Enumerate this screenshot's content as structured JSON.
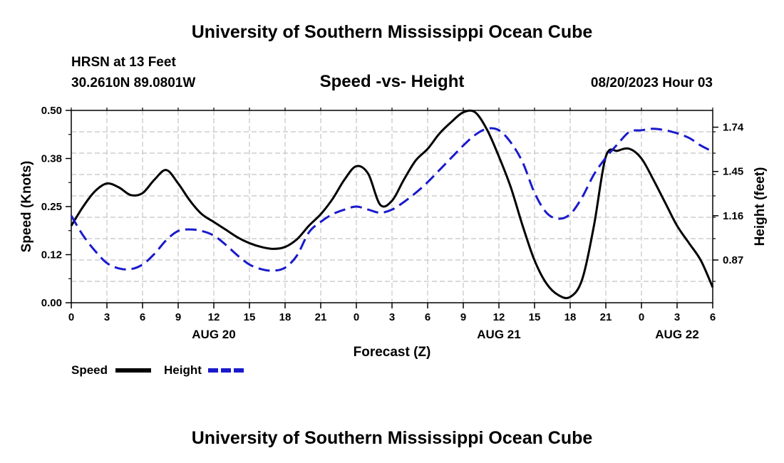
{
  "header": {
    "title": "University of Southern Mississippi Ocean Cube",
    "station": "HRSN at 13 Feet",
    "coords": "30.2610N  89.0801W",
    "subtitle": "Speed -vs- Height",
    "datetime": "08/20/2023 Hour 03"
  },
  "footer": {
    "title": "University of Southern Mississippi Ocean Cube"
  },
  "chart_data": {
    "type": "line",
    "title": "Speed -vs- Height",
    "xlabel": "Forecast (Z)",
    "ylabel": "Speed (Knots)",
    "y2label": "Height (feet)",
    "x_range": [
      0,
      54
    ],
    "ylim": [
      0,
      0.5
    ],
    "y2lim": [
      0.59,
      1.85
    ],
    "x_ticks": [
      0,
      3,
      6,
      9,
      12,
      15,
      18,
      21,
      24,
      27,
      30,
      33,
      36,
      39,
      42,
      45,
      48,
      51,
      54
    ],
    "x_tick_labels": [
      "0",
      "3",
      "6",
      "9",
      "12",
      "15",
      "18",
      "21",
      "0",
      "3",
      "6",
      "9",
      "12",
      "15",
      "18",
      "21",
      "0",
      "3",
      "6"
    ],
    "date_labels": [
      {
        "label": "AUG 20",
        "x": 12
      },
      {
        "label": "AUG 21",
        "x": 36
      },
      {
        "label": "AUG 22",
        "x": 51
      }
    ],
    "y_ticks": [
      0,
      0.125,
      0.25,
      0.375,
      0.5
    ],
    "y_tick_labels": [
      "0.00",
      "0.12",
      "0.25",
      "0.38",
      "0.50"
    ],
    "y2_ticks": [
      0.87,
      1.16,
      1.45,
      1.74
    ],
    "y2_tick_labels": [
      "0.87",
      "1.16",
      "1.45",
      "1.74"
    ],
    "grid": true,
    "series": [
      {
        "name": "Speed",
        "axis": "left",
        "color": "#000000",
        "dash": "solid",
        "x": [
          0,
          1,
          2,
          3,
          4,
          5,
          6,
          7,
          8,
          9,
          10,
          11,
          12,
          13,
          14,
          15,
          16,
          17,
          18,
          19,
          20,
          21,
          22,
          23,
          24,
          25,
          26,
          27,
          28,
          29,
          30,
          31,
          32,
          33,
          34,
          35,
          36,
          37,
          38,
          39,
          40,
          41,
          42,
          43,
          44,
          45,
          46,
          47,
          48,
          49,
          50,
          51,
          52,
          53,
          54
        ],
        "values": [
          0.2,
          0.25,
          0.29,
          0.31,
          0.3,
          0.28,
          0.285,
          0.32,
          0.345,
          0.31,
          0.265,
          0.23,
          0.21,
          0.19,
          0.17,
          0.155,
          0.145,
          0.14,
          0.145,
          0.165,
          0.2,
          0.23,
          0.27,
          0.32,
          0.355,
          0.335,
          0.255,
          0.265,
          0.32,
          0.37,
          0.4,
          0.44,
          0.47,
          0.495,
          0.495,
          0.45,
          0.38,
          0.3,
          0.2,
          0.11,
          0.05,
          0.02,
          0.015,
          0.06,
          0.2,
          0.38,
          0.395,
          0.4,
          0.375,
          0.32,
          0.26,
          0.2,
          0.155,
          0.11,
          0.04
        ]
      },
      {
        "name": "Height",
        "axis": "right",
        "color": "#1a1acc",
        "dash": "dashed",
        "x": [
          0,
          1,
          2,
          3,
          4,
          5,
          6,
          7,
          8,
          9,
          10,
          11,
          12,
          13,
          14,
          15,
          16,
          17,
          18,
          19,
          20,
          21,
          22,
          23,
          24,
          25,
          26,
          27,
          28,
          29,
          30,
          31,
          32,
          33,
          34,
          35,
          36,
          37,
          38,
          39,
          40,
          41,
          42,
          43,
          44,
          45,
          46,
          47,
          48,
          49,
          50,
          51,
          52,
          53,
          54
        ],
        "values": [
          1.16,
          1.03,
          0.93,
          0.85,
          0.815,
          0.81,
          0.84,
          0.91,
          1.0,
          1.06,
          1.07,
          1.06,
          1.03,
          0.97,
          0.9,
          0.84,
          0.81,
          0.8,
          0.82,
          0.9,
          1.05,
          1.12,
          1.17,
          1.2,
          1.22,
          1.2,
          1.18,
          1.2,
          1.25,
          1.31,
          1.38,
          1.46,
          1.54,
          1.62,
          1.69,
          1.73,
          1.72,
          1.64,
          1.51,
          1.31,
          1.18,
          1.14,
          1.17,
          1.28,
          1.43,
          1.54,
          1.63,
          1.71,
          1.72,
          1.73,
          1.72,
          1.7,
          1.67,
          1.62,
          1.58
        ]
      }
    ],
    "legend": {
      "placement": "bottom-left",
      "items": [
        {
          "label": "Speed",
          "color": "#000000"
        },
        {
          "label": "Height",
          "color": "#1a1acc"
        }
      ]
    }
  }
}
